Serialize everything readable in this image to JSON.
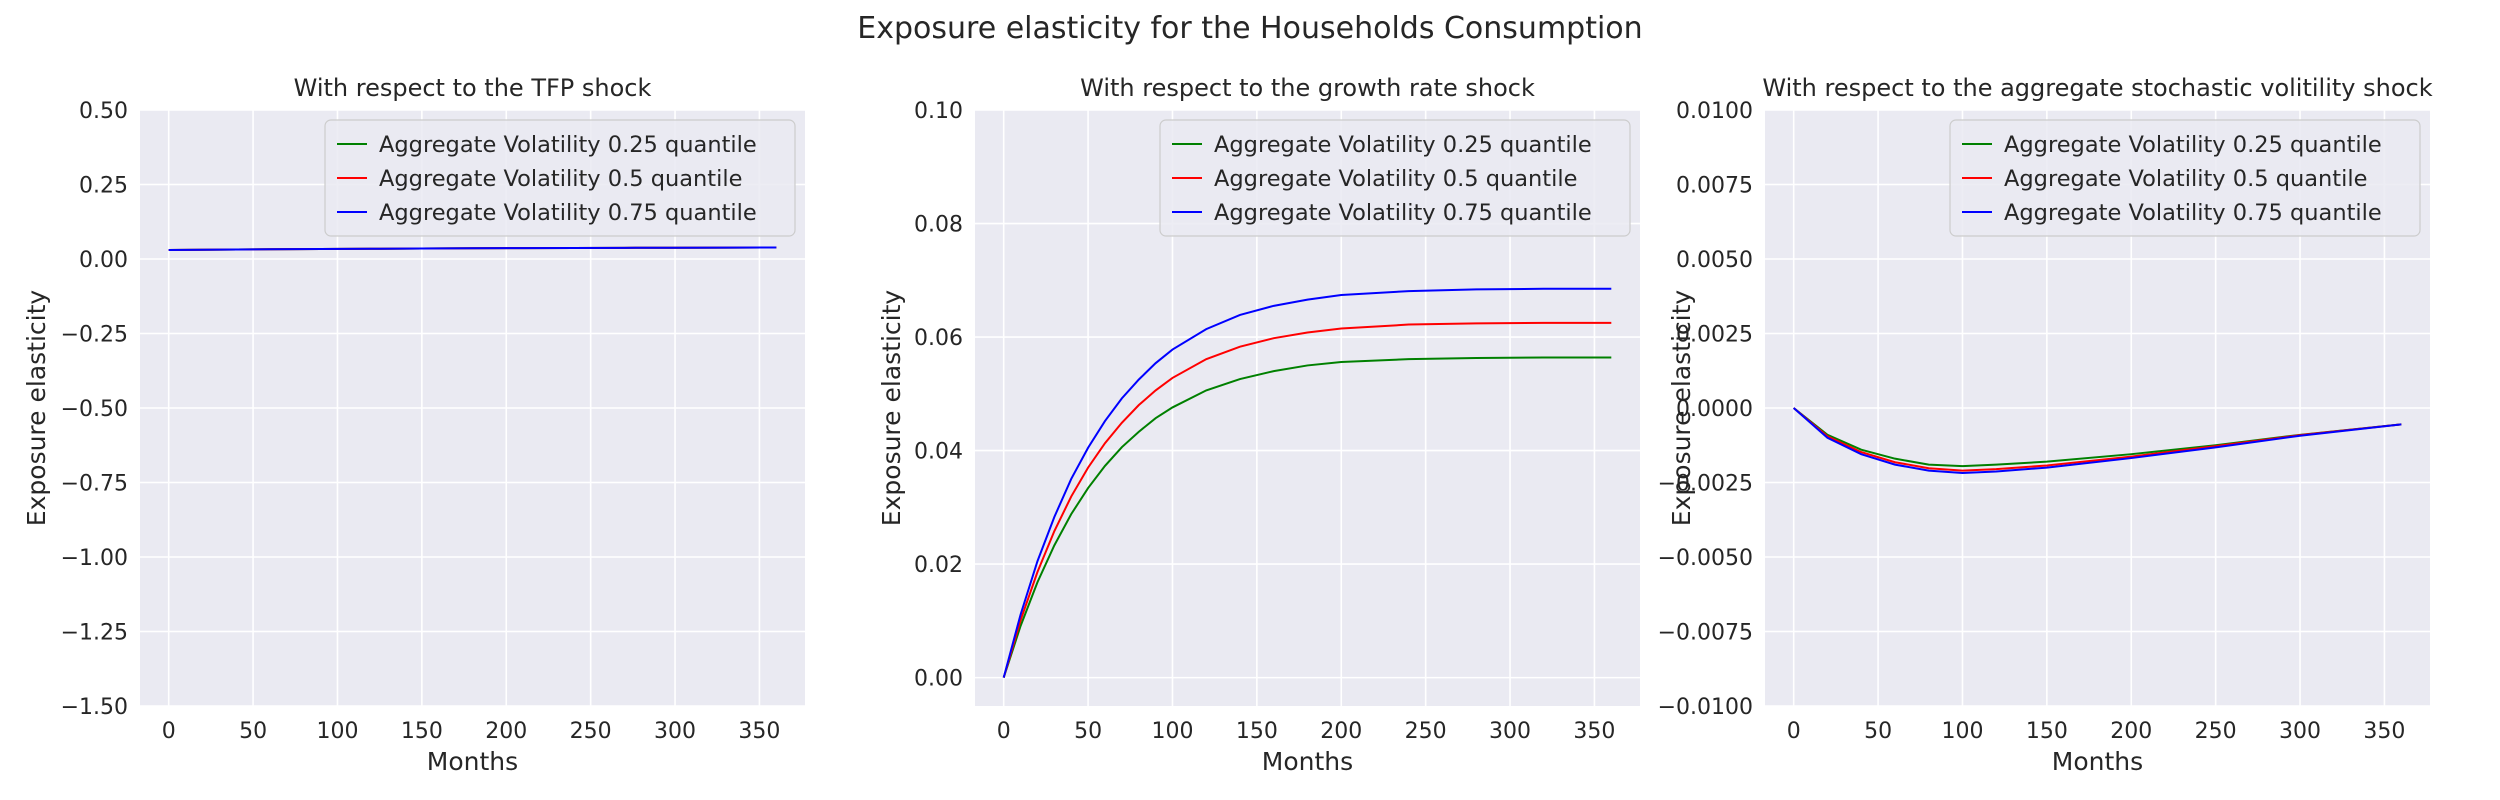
{
  "figure": {
    "title": "Exposure elasticity for the Households Consumption"
  },
  "colors": {
    "panel_bg": "#eaeaf2",
    "grid": "#ffffff",
    "series": [
      "#008000",
      "#ff0000",
      "#0000ff"
    ]
  },
  "chart_data": [
    {
      "type": "line",
      "title": "With respect to the TFP shock",
      "xlabel": "Months",
      "ylabel": "Exposure elasticity",
      "xlim": [
        -17,
        377
      ],
      "ylim": [
        -1.5,
        0.5
      ],
      "xticks": [
        0,
        50,
        100,
        150,
        200,
        250,
        300,
        350
      ],
      "xtick_labels": [
        "0",
        "50",
        "100",
        "150",
        "200",
        "250",
        "300",
        "350"
      ],
      "yticks": [
        -1.5,
        -1.25,
        -1.0,
        -0.75,
        -0.5,
        -0.25,
        0.0,
        0.25,
        0.5
      ],
      "ytick_labels": [
        "−1.50",
        "−1.25",
        "−1.00",
        "−0.75",
        "−0.50",
        "−0.25",
        "0.00",
        "0.25",
        "0.50"
      ],
      "grid": true,
      "legend_position": "top-right",
      "x": [
        0,
        30,
        60,
        90,
        120,
        150,
        180,
        210,
        240,
        270,
        300,
        330,
        360
      ],
      "series": [
        {
          "name": "Aggregate Volatility 0.25 quantile",
          "values": [
            0.03,
            0.0313,
            0.0325,
            0.0335,
            0.0344,
            0.0352,
            0.0359,
            0.0365,
            0.037,
            0.0375,
            0.0379,
            0.0382,
            0.0385
          ]
        },
        {
          "name": "Aggregate Volatility 0.5 quantile",
          "values": [
            0.03,
            0.0313,
            0.0325,
            0.0335,
            0.0344,
            0.0352,
            0.0359,
            0.0365,
            0.037,
            0.0375,
            0.0379,
            0.0382,
            0.0385
          ]
        },
        {
          "name": "Aggregate Volatility 0.75 quantile",
          "values": [
            0.03,
            0.0313,
            0.0325,
            0.0335,
            0.0344,
            0.0352,
            0.0359,
            0.0365,
            0.037,
            0.0375,
            0.0379,
            0.0382,
            0.0385
          ]
        }
      ]
    },
    {
      "type": "line",
      "title": "With respect to the growth rate shock",
      "xlabel": "Months",
      "ylabel": "Exposure elasticity",
      "xlim": [
        -17,
        377
      ],
      "ylim": [
        -0.005,
        0.1
      ],
      "xticks": [
        0,
        50,
        100,
        150,
        200,
        250,
        300,
        350
      ],
      "xtick_labels": [
        "0",
        "50",
        "100",
        "150",
        "200",
        "250",
        "300",
        "350"
      ],
      "yticks": [
        0.0,
        0.02,
        0.04,
        0.06,
        0.08,
        0.1
      ],
      "ytick_labels": [
        "0.00",
        "0.02",
        "0.04",
        "0.06",
        "0.08",
        "0.10"
      ],
      "grid": true,
      "legend_position": "top-right",
      "x": [
        0,
        10,
        20,
        30,
        40,
        50,
        60,
        70,
        80,
        90,
        100,
        120,
        140,
        160,
        180,
        200,
        240,
        280,
        320,
        360
      ],
      "series": [
        {
          "name": "Aggregate Volatility 0.25 quantile",
          "values": [
            0.0,
            0.0091,
            0.0168,
            0.0233,
            0.0288,
            0.0334,
            0.0373,
            0.0406,
            0.0433,
            0.0457,
            0.0476,
            0.0506,
            0.0526,
            0.054,
            0.055,
            0.0556,
            0.0561,
            0.0563,
            0.0564,
            0.0564
          ]
        },
        {
          "name": "Aggregate Volatility 0.5 quantile",
          "values": [
            0.0,
            0.0101,
            0.0186,
            0.0258,
            0.0319,
            0.037,
            0.0413,
            0.0449,
            0.048,
            0.0506,
            0.0528,
            0.0561,
            0.0583,
            0.0598,
            0.0608,
            0.0615,
            0.0622,
            0.0624,
            0.0625,
            0.0625
          ]
        },
        {
          "name": "Aggregate Volatility 0.75 quantile",
          "values": [
            0.0,
            0.0111,
            0.0205,
            0.0283,
            0.035,
            0.0405,
            0.0452,
            0.0492,
            0.0525,
            0.0554,
            0.0578,
            0.0614,
            0.0639,
            0.0655,
            0.0666,
            0.0674,
            0.0681,
            0.0684,
            0.0685,
            0.0685
          ]
        }
      ]
    },
    {
      "type": "line",
      "title": "With respect to the aggregate stochastic volitility shock",
      "xlabel": "Months",
      "ylabel": "Exposure elasticity",
      "xlim": [
        -17,
        377
      ],
      "ylim": [
        -0.01,
        0.01
      ],
      "xticks": [
        0,
        50,
        100,
        150,
        200,
        250,
        300,
        350
      ],
      "xtick_labels": [
        "0",
        "50",
        "100",
        "150",
        "200",
        "250",
        "300",
        "350"
      ],
      "yticks": [
        -0.01,
        -0.0075,
        -0.005,
        -0.0025,
        0.0,
        0.0025,
        0.005,
        0.0075,
        0.01
      ],
      "ytick_labels": [
        "−0.0100",
        "−0.0075",
        "−0.0050",
        "−0.0025",
        "0.0000",
        "0.0025",
        "0.0050",
        "0.0075",
        "0.0100"
      ],
      "grid": true,
      "legend_position": "top-right",
      "x": [
        0,
        20,
        40,
        60,
        80,
        100,
        120,
        150,
        200,
        250,
        300,
        360
      ],
      "series": [
        {
          "name": "Aggregate Volatility 0.25 quantile",
          "values": [
            0.0,
            -0.0009,
            -0.0014,
            -0.0017,
            -0.0019,
            -0.00195,
            -0.0019,
            -0.0018,
            -0.00155,
            -0.00125,
            -0.0009,
            -0.00055
          ]
        },
        {
          "name": "Aggregate Volatility 0.5 quantile",
          "values": [
            0.0,
            -0.00095,
            -0.00148,
            -0.00182,
            -0.00202,
            -0.0021,
            -0.00205,
            -0.00193,
            -0.00163,
            -0.00128,
            -0.00091,
            -0.00055
          ]
        },
        {
          "name": "Aggregate Volatility 0.75 quantile",
          "values": [
            0.0,
            -0.001,
            -0.00155,
            -0.0019,
            -0.0021,
            -0.00218,
            -0.00213,
            -0.002,
            -0.00168,
            -0.00132,
            -0.00093,
            -0.00055
          ]
        }
      ]
    }
  ]
}
